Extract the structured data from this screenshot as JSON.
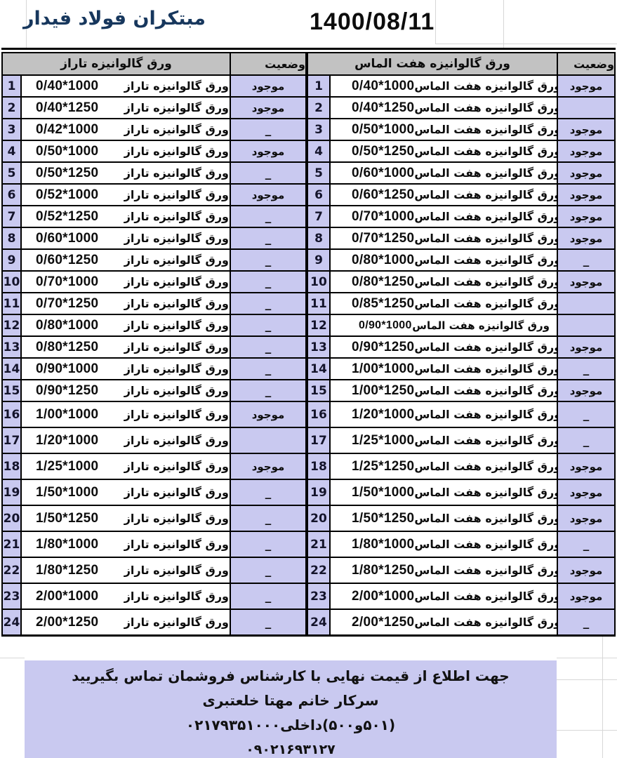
{
  "header": {
    "company": "مبتکران فولاد فیدار",
    "date": "1400/08/11"
  },
  "tables": {
    "status_header": "وضعیت",
    "available_label": "موجود",
    "right": {
      "title": "ورق گالوانیزه هفت الماس",
      "product_name": "ورق گالوانیزه هفت الماس",
      "rows": [
        {
          "num": 1,
          "size": "0/40*1000",
          "status": "موجود"
        },
        {
          "num": 2,
          "size": "0/40*1250",
          "status": ""
        },
        {
          "num": 3,
          "size": "0/50*1000",
          "status": "موجود"
        },
        {
          "num": 4,
          "size": "0/50*1250",
          "status": "موجود"
        },
        {
          "num": 5,
          "size": "0/60*1000",
          "status": "موجود"
        },
        {
          "num": 6,
          "size": "0/60*1250",
          "status": "موجود"
        },
        {
          "num": 7,
          "size": "0/70*1000",
          "status": "موجود"
        },
        {
          "num": 8,
          "size": "0/70*1250",
          "status": "موجود"
        },
        {
          "num": 9,
          "size": "0/80*1000",
          "status": "_"
        },
        {
          "num": 10,
          "size": "0/80*1250",
          "status": "موجود"
        },
        {
          "num": 11,
          "size": "0/85*1250",
          "status": ""
        },
        {
          "num": 12,
          "size": "0/90*1000",
          "status": "",
          "compact": true
        },
        {
          "num": 13,
          "size": "0/90*1250",
          "status": "موجود"
        },
        {
          "num": 14,
          "size": "1/00*1000",
          "status": "_"
        },
        {
          "num": 15,
          "size": "1/00*1250",
          "status": "موجود"
        },
        {
          "num": 16,
          "size": "1/20*1000",
          "status": "_"
        },
        {
          "num": 17,
          "size": "1/25*1000",
          "status": "_"
        },
        {
          "num": 18,
          "size": "1/25*1250",
          "status": "موجود"
        },
        {
          "num": 19,
          "size": "1/50*1000",
          "status": "موجود"
        },
        {
          "num": 20,
          "size": "1/50*1250",
          "status": "موجود"
        },
        {
          "num": 21,
          "size": "1/80*1000",
          "status": "_"
        },
        {
          "num": 22,
          "size": "1/80*1250",
          "status": "موجود"
        },
        {
          "num": 23,
          "size": "2/00*1000",
          "status": "موجود"
        },
        {
          "num": 24,
          "size": "2/00*1250",
          "status": "_"
        }
      ]
    },
    "left": {
      "title": "ورق گالوانیزه تاراز",
      "product_name": "ورق گالوانیزه تاراز",
      "rows": [
        {
          "num": 1,
          "size": "0/40*1000",
          "status": "موجود"
        },
        {
          "num": 2,
          "size": "0/40*1250",
          "status": "موجود"
        },
        {
          "num": 3,
          "size": "0/42*1000",
          "status": "_"
        },
        {
          "num": 4,
          "size": "0/50*1000",
          "status": "موجود"
        },
        {
          "num": 5,
          "size": "0/50*1250",
          "status": "_"
        },
        {
          "num": 6,
          "size": "0/52*1000",
          "status": "موجود"
        },
        {
          "num": 7,
          "size": "0/52*1250",
          "status": "_"
        },
        {
          "num": 8,
          "size": "0/60*1000",
          "status": "_"
        },
        {
          "num": 9,
          "size": "0/60*1250",
          "status": "_"
        },
        {
          "num": 10,
          "size": "0/70*1000",
          "status": "_"
        },
        {
          "num": 11,
          "size": "0/70*1250",
          "status": "_"
        },
        {
          "num": 12,
          "size": "0/80*1000",
          "status": "_"
        },
        {
          "num": 13,
          "size": "0/80*1250",
          "status": "_"
        },
        {
          "num": 14,
          "size": "0/90*1000",
          "status": "_"
        },
        {
          "num": 15,
          "size": "0/90*1250",
          "status": "_"
        },
        {
          "num": 16,
          "size": "1/00*1000",
          "status": "موجود"
        },
        {
          "num": 17,
          "size": "1/20*1000",
          "status": ""
        },
        {
          "num": 18,
          "size": "1/25*1000",
          "status": "موجود"
        },
        {
          "num": 19,
          "size": "1/50*1000",
          "status": "_"
        },
        {
          "num": 20,
          "size": "1/50*1250",
          "status": "_"
        },
        {
          "num": 21,
          "size": "1/80*1000",
          "status": "_"
        },
        {
          "num": 22,
          "size": "1/80*1250",
          "status": "_"
        },
        {
          "num": 23,
          "size": "2/00*1000",
          "status": "_"
        },
        {
          "num": 24,
          "size": "2/00*1250",
          "status": "_"
        }
      ]
    }
  },
  "footer": {
    "lines": [
      "جهت اطلاع از قیمت نهایی با کارشناس فروشمان تماس بگیریید",
      "سرکار خانم مهتا خلعتبری",
      "۰۲۱۷۹۳۵۱۰۰۰داخلی‎(۵۰۰‎و‎۵۰۱)",
      "۰۹۰۲۱۶۹۳۱۲۷"
    ]
  },
  "colors": {
    "lavender": "#c9c9f0",
    "header_gray": "#c2c2c2",
    "title_blue": "#17375d",
    "border": "#000000"
  }
}
